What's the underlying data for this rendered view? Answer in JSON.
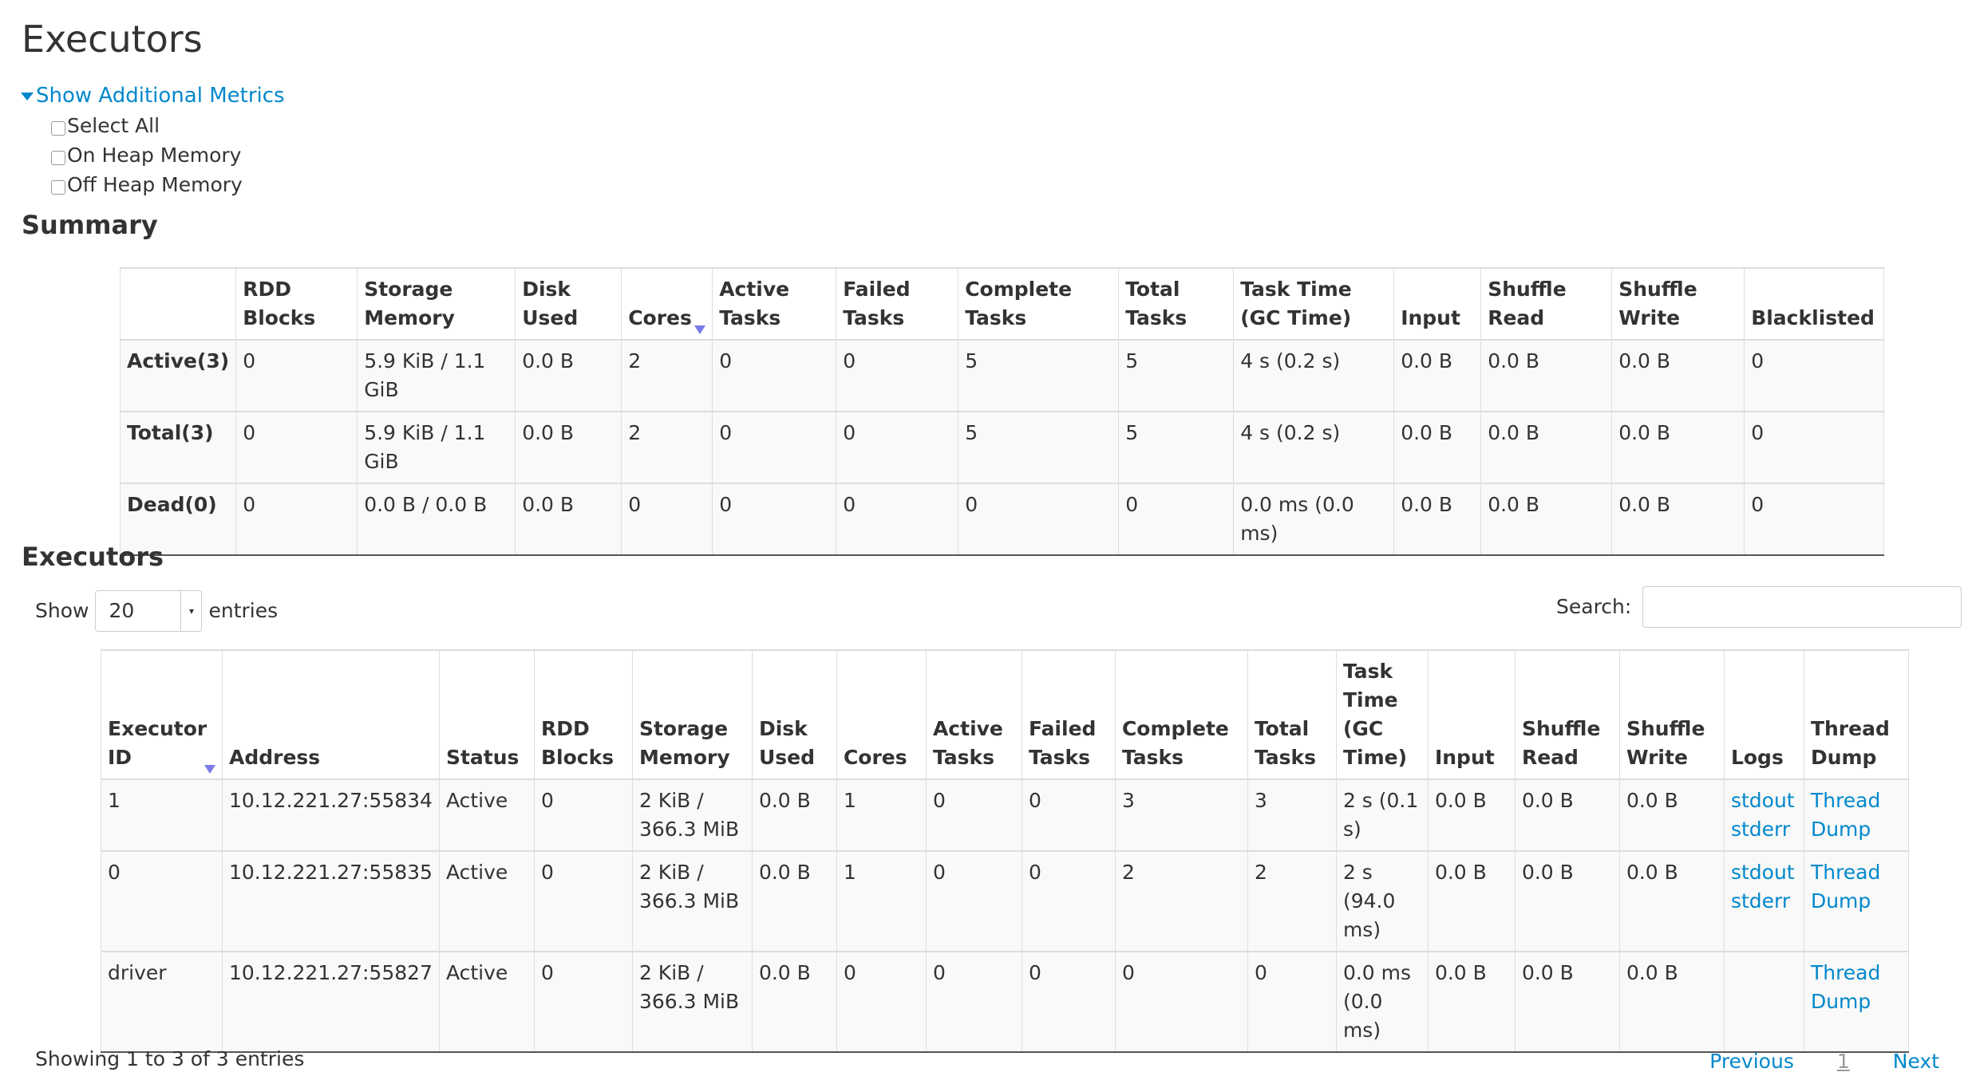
{
  "page_title": "Executors",
  "additional_metrics": {
    "toggle_label": "Show Additional Metrics",
    "options": [
      {
        "label": "Select All",
        "checked": false
      },
      {
        "label": "On Heap Memory",
        "checked": false
      },
      {
        "label": "Off Heap Memory",
        "checked": false
      }
    ]
  },
  "summary": {
    "heading": "Summary",
    "columns": [
      "",
      "RDD Blocks",
      "Storage Memory",
      "Disk Used",
      "Cores",
      "Active Tasks",
      "Failed Tasks",
      "Complete Tasks",
      "Total Tasks",
      "Task Time (GC Time)",
      "Input",
      "Shuffle Read",
      "Shuffle Write",
      "Blacklisted"
    ],
    "sorted_column": "Cores",
    "rows": [
      [
        "Active(3)",
        "0",
        "5.9 KiB / 1.1 GiB",
        "0.0 B",
        "2",
        "0",
        "0",
        "5",
        "5",
        "4 s (0.2 s)",
        "0.0 B",
        "0.0 B",
        "0.0 B",
        "0"
      ],
      [
        "Total(3)",
        "0",
        "5.9 KiB / 1.1 GiB",
        "0.0 B",
        "2",
        "0",
        "0",
        "5",
        "5",
        "4 s (0.2 s)",
        "0.0 B",
        "0.0 B",
        "0.0 B",
        "0"
      ],
      [
        "Dead(0)",
        "0",
        "0.0 B / 0.0 B",
        "0.0 B",
        "0",
        "0",
        "0",
        "0",
        "0",
        "0.0 ms (0.0 ms)",
        "0.0 B",
        "0.0 B",
        "0.0 B",
        "0"
      ]
    ]
  },
  "executors": {
    "heading": "Executors",
    "show_label": "Show",
    "entries_value": "20",
    "entries_label": "entries",
    "search_label": "Search:",
    "search_value": "",
    "columns": [
      "Executor ID",
      "Address",
      "Status",
      "RDD Blocks",
      "Storage Memory",
      "Disk Used",
      "Cores",
      "Active Tasks",
      "Failed Tasks",
      "Complete Tasks",
      "Total Tasks",
      "Task Time (GC Time)",
      "Input",
      "Shuffle Read",
      "Shuffle Write",
      "Logs",
      "Thread Dump"
    ],
    "sorted_column": "Executor ID",
    "rows": [
      {
        "cells": [
          "1",
          "10.12.221.27:55834",
          "Active",
          "0",
          "2 KiB / 366.3 MiB",
          "0.0 B",
          "1",
          "0",
          "0",
          "3",
          "3",
          "2 s (0.1 s)",
          "0.0 B",
          "0.0 B",
          "0.0 B"
        ],
        "logs": [
          "stdout",
          "stderr"
        ],
        "thread_dump": "Thread Dump"
      },
      {
        "cells": [
          "0",
          "10.12.221.27:55835",
          "Active",
          "0",
          "2 KiB / 366.3 MiB",
          "0.0 B",
          "1",
          "0",
          "0",
          "2",
          "2",
          "2 s (94.0 ms)",
          "0.0 B",
          "0.0 B",
          "0.0 B"
        ],
        "logs": [
          "stdout",
          "stderr"
        ],
        "thread_dump": "Thread Dump"
      },
      {
        "cells": [
          "driver",
          "10.12.221.27:55827",
          "Active",
          "0",
          "2 KiB / 366.3 MiB",
          "0.0 B",
          "0",
          "0",
          "0",
          "0",
          "0",
          "0.0 ms (0.0 ms)",
          "0.0 B",
          "0.0 B",
          "0.0 B"
        ],
        "logs": [],
        "thread_dump": "Thread Dump"
      }
    ],
    "info": "Showing 1 to 3 of 3 entries",
    "pager": {
      "previous": "Previous",
      "current": "1",
      "next": "Next"
    }
  }
}
